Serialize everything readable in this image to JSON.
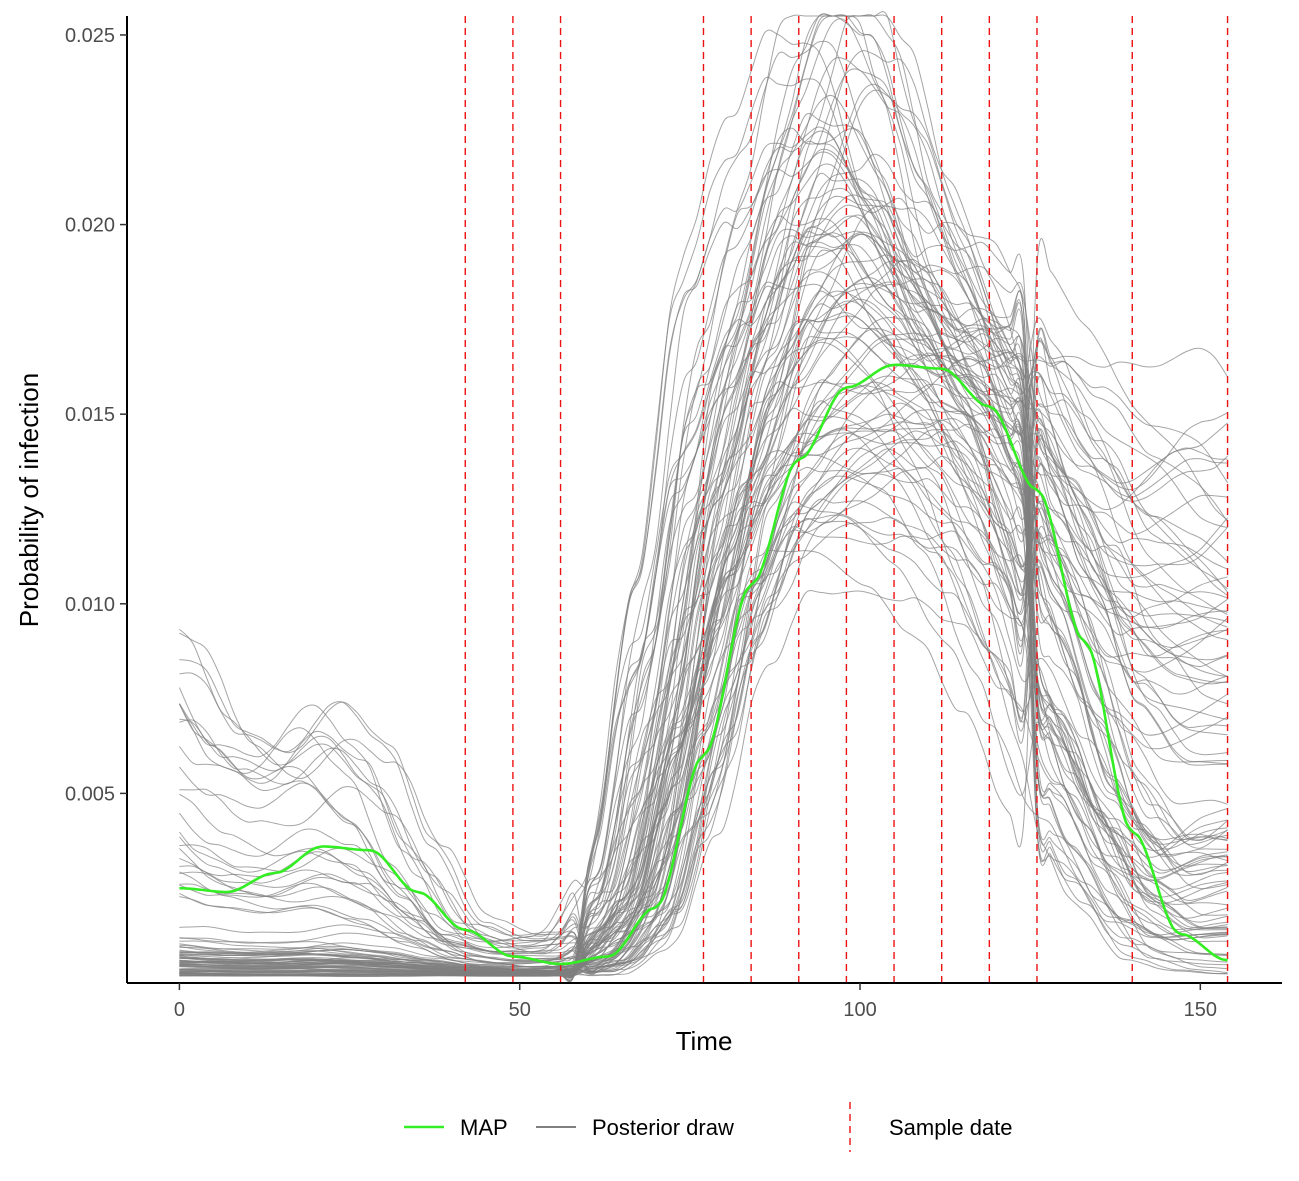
{
  "chart_data": {
    "type": "line",
    "xlabel": "Time",
    "ylabel": "Probability of infection",
    "xlim": [
      -7.7,
      162
    ],
    "ylim": [
      0.0,
      0.0255
    ],
    "x_ticks": [
      0,
      50,
      100,
      150
    ],
    "x_tick_labels": [
      "0",
      "50",
      "100",
      "150"
    ],
    "y_ticks": [
      0.005,
      0.01,
      0.015,
      0.02,
      0.025
    ],
    "y_tick_labels": [
      "0.005",
      "0.010",
      "0.015",
      "0.020",
      "0.025"
    ],
    "grid": false,
    "legend_position": "bottom",
    "colors": {
      "map": "#33ee22",
      "draws": "#7f7f7f",
      "sample_date": "#ee1111",
      "axis": "#000000"
    },
    "sample_dates": [
      42,
      49,
      56,
      77,
      84,
      91,
      98,
      105,
      112,
      119,
      126,
      140,
      154
    ],
    "series": [
      {
        "name": "MAP",
        "x": [
          0,
          7,
          14,
          21,
          28,
          35,
          42,
          49,
          56,
          63,
          70,
          77,
          84,
          91,
          98,
          105,
          112,
          119,
          126,
          133,
          140,
          147,
          154
        ],
        "y": [
          0.0025,
          0.0024,
          0.0029,
          0.0036,
          0.0035,
          0.0024,
          0.0014,
          0.0007,
          0.0005,
          0.0007,
          0.002,
          0.006,
          0.0105,
          0.0138,
          0.0157,
          0.0163,
          0.0162,
          0.0152,
          0.013,
          0.009,
          0.004,
          0.0013,
          0.0006
        ]
      }
    ],
    "posterior_draws": {
      "name": "Posterior draw",
      "count": 100,
      "x": [
        0,
        7,
        14,
        21,
        28,
        35,
        42,
        49,
        56,
        63,
        70,
        77,
        84,
        91,
        98,
        105,
        112,
        119,
        126,
        133,
        140,
        147,
        154
      ],
      "base": [
        0.001,
        0.0009,
        0.0009,
        0.001,
        0.0009,
        0.0007,
        0.0005,
        0.0004,
        0.0004,
        0.0007,
        0.0025,
        0.008,
        0.013,
        0.0158,
        0.0165,
        0.0163,
        0.0158,
        0.0145,
        0.012,
        0.0088,
        0.0055,
        0.004,
        0.0045
      ],
      "upper": [
        0.009,
        0.007,
        0.0062,
        0.0072,
        0.006,
        0.0035,
        0.0016,
        0.0012,
        0.0013,
        0.003,
        0.01,
        0.017,
        0.02,
        0.0235,
        0.0255,
        0.0235,
        0.02,
        0.0185,
        0.017,
        0.016,
        0.0155,
        0.016,
        0.015
      ],
      "lower": [
        0.0002,
        0.0002,
        0.0002,
        0.0002,
        0.0002,
        0.0002,
        0.0002,
        0.0002,
        0.0002,
        0.0002,
        0.0008,
        0.0035,
        0.008,
        0.011,
        0.0115,
        0.011,
        0.0095,
        0.007,
        0.004,
        0.002,
        0.0006,
        0.0003,
        0.0002
      ]
    },
    "legend": [
      {
        "label": "MAP",
        "kind": "solid",
        "color": "#33ee22"
      },
      {
        "label": "Posterior draw",
        "kind": "solid",
        "color": "#7f7f7f"
      },
      {
        "label": "Sample date",
        "kind": "dashed-vertical",
        "color": "#ee1111"
      }
    ]
  }
}
